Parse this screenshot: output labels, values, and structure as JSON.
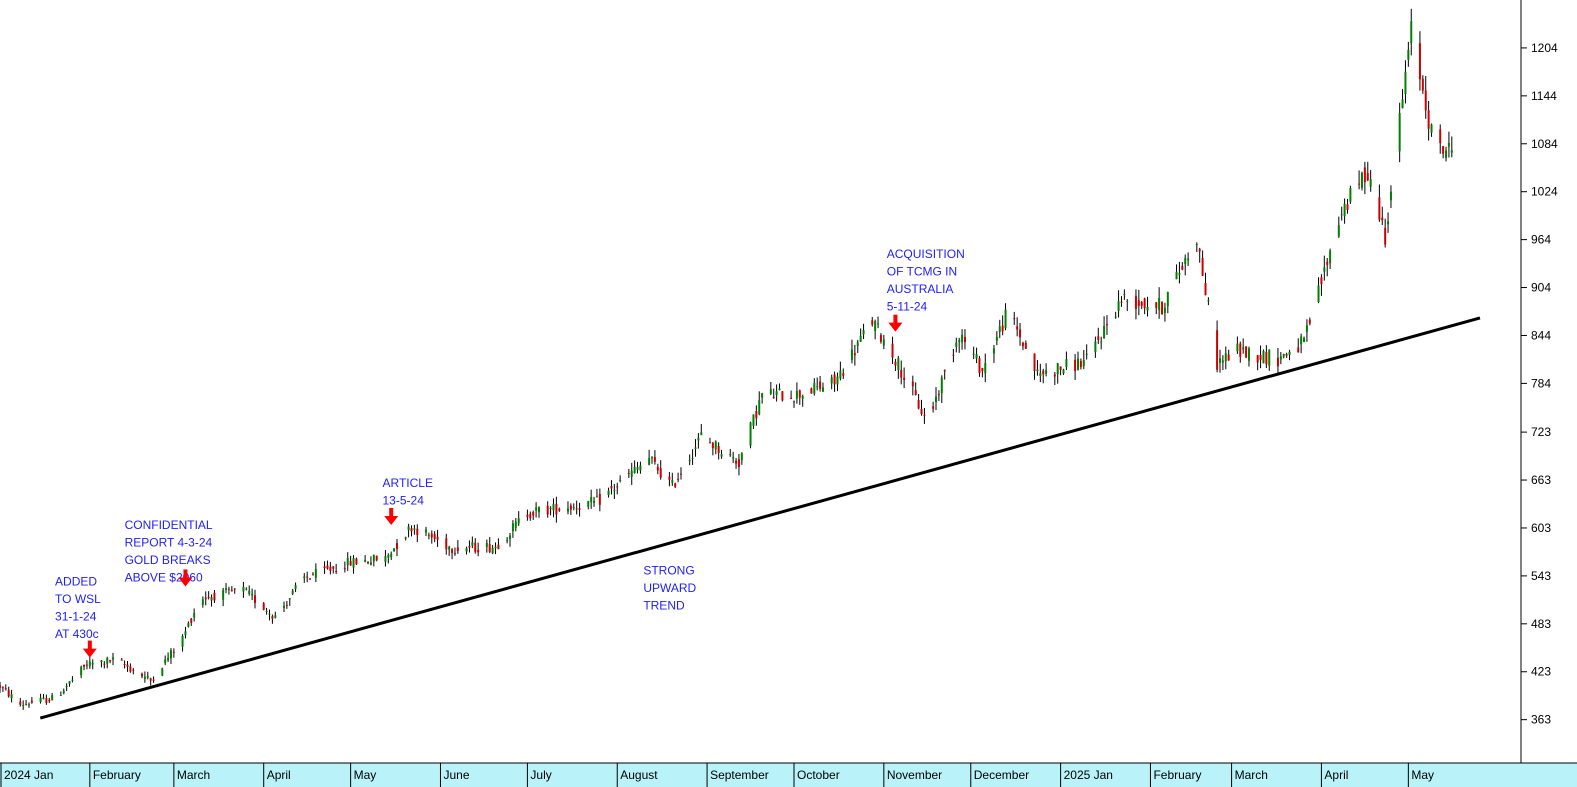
{
  "colors": {
    "up": "#008000",
    "down": "#cc0000",
    "trendline": "#000000",
    "annotation_text": "#2020ff",
    "arrow": "#ff0000",
    "axis_band": "#b9f3f9"
  },
  "chart_data": {
    "type": "candlestick",
    "ylim": [
      310,
      1264
    ],
    "y_ticks": [
      363,
      423,
      483,
      543,
      603,
      663,
      723,
      784,
      844,
      904,
      964,
      1024,
      1084,
      1144,
      1204
    ],
    "x_months": [
      "2024 Jan",
      "February",
      "March",
      "April",
      "May",
      "June",
      "July",
      "August",
      "September",
      "October",
      "November",
      "December",
      "2025 Jan",
      "February",
      "March",
      "April",
      "May"
    ],
    "x_range": [
      "2024-01-01",
      "2025-05-24"
    ],
    "path_anchors": [
      {
        "date": "2024-01-01",
        "v": 405
      },
      {
        "date": "2024-01-08",
        "v": 382
      },
      {
        "date": "2024-01-20",
        "v": 390
      },
      {
        "date": "2024-01-31",
        "v": 432
      },
      {
        "date": "2024-02-10",
        "v": 438
      },
      {
        "date": "2024-02-22",
        "v": 412
      },
      {
        "date": "2024-03-04",
        "v": 465
      },
      {
        "date": "2024-03-10",
        "v": 515
      },
      {
        "date": "2024-03-25",
        "v": 525
      },
      {
        "date": "2024-04-05",
        "v": 492
      },
      {
        "date": "2024-04-15",
        "v": 540
      },
      {
        "date": "2024-05-01",
        "v": 560
      },
      {
        "date": "2024-05-13",
        "v": 565
      },
      {
        "date": "2024-05-22",
        "v": 605
      },
      {
        "date": "2024-06-05",
        "v": 578
      },
      {
        "date": "2024-06-20",
        "v": 580
      },
      {
        "date": "2024-07-01",
        "v": 622
      },
      {
        "date": "2024-07-25",
        "v": 635
      },
      {
        "date": "2024-08-12",
        "v": 690
      },
      {
        "date": "2024-08-20",
        "v": 655
      },
      {
        "date": "2024-08-30",
        "v": 718
      },
      {
        "date": "2024-09-12",
        "v": 685
      },
      {
        "date": "2024-09-20",
        "v": 770
      },
      {
        "date": "2024-10-02",
        "v": 770
      },
      {
        "date": "2024-10-15",
        "v": 785
      },
      {
        "date": "2024-10-28",
        "v": 862
      },
      {
        "date": "2024-11-05",
        "v": 815
      },
      {
        "date": "2024-11-16",
        "v": 735
      },
      {
        "date": "2024-11-27",
        "v": 848
      },
      {
        "date": "2024-12-05",
        "v": 800
      },
      {
        "date": "2024-12-14",
        "v": 875
      },
      {
        "date": "2024-12-24",
        "v": 795
      },
      {
        "date": "2025-01-10",
        "v": 812
      },
      {
        "date": "2025-01-22",
        "v": 890
      },
      {
        "date": "2025-02-05",
        "v": 880
      },
      {
        "date": "2025-02-17",
        "v": 968
      },
      {
        "date": "2025-02-24",
        "v": 810
      },
      {
        "date": "2025-03-03",
        "v": 825
      },
      {
        "date": "2025-03-17",
        "v": 815
      },
      {
        "date": "2025-03-26",
        "v": 835
      },
      {
        "date": "2025-04-08",
        "v": 1000
      },
      {
        "date": "2025-04-17",
        "v": 1050
      },
      {
        "date": "2025-04-23",
        "v": 970
      },
      {
        "date": "2025-05-02",
        "v": 1225
      },
      {
        "date": "2025-05-10",
        "v": 1080
      },
      {
        "date": "2025-05-17",
        "v": 1075
      }
    ],
    "trendline": [
      {
        "date": "2024-01-08",
        "v": 365
      },
      {
        "date": "2025-05-24",
        "v": 866
      }
    ],
    "annotations": [
      {
        "id": "added",
        "lines": [
          "ADDED",
          "TO WSL",
          "31-1-24",
          "AT 430c"
        ],
        "date": "2024-01-20",
        "anchor_v": 531,
        "arrow_date": "2024-02-01",
        "arrow_v": 442
      },
      {
        "id": "confidential",
        "lines": [
          "CONFIDENTIAL",
          "REPORT 4-3-24",
          "GOLD BREAKS",
          "ABOVE $2060"
        ],
        "date": "2024-02-13",
        "anchor_v": 602,
        "arrow_date": "2024-03-05",
        "arrow_v": 531
      },
      {
        "id": "article",
        "lines": [
          "ARTICLE",
          "13-5-24"
        ],
        "date": "2024-05-12",
        "anchor_v": 654,
        "arrow_date": "2024-05-15",
        "arrow_v": 608
      },
      {
        "id": "trend",
        "lines": [
          "STRONG",
          "UPWARD",
          "TREND"
        ],
        "date": "2024-08-10",
        "anchor_v": 545,
        "arrow_date": null,
        "arrow_v": null
      },
      {
        "id": "tcmg",
        "lines": [
          "ACQUISITION",
          "OF TCMG IN",
          "AUSTRALIA",
          "5-11-24"
        ],
        "date": "2024-11-02",
        "anchor_v": 941,
        "arrow_date": "2024-11-05",
        "arrow_v": 850
      }
    ]
  }
}
